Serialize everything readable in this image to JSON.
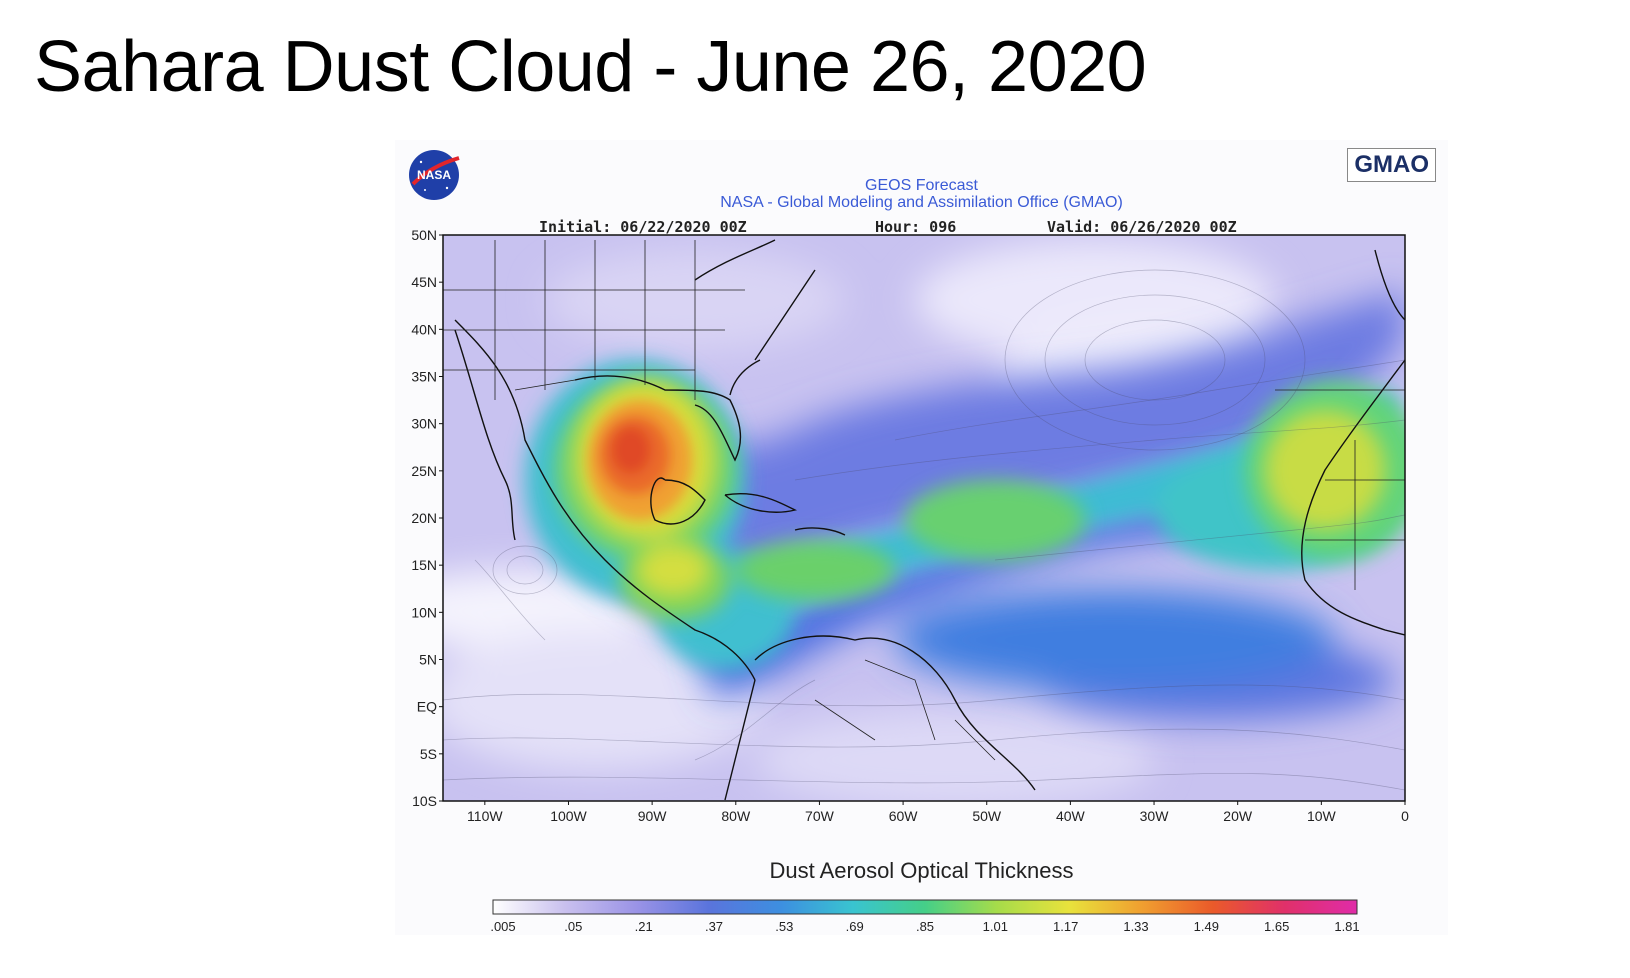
{
  "slide": {
    "title": "Sahara Dust Cloud - June 26, 2020"
  },
  "header": {
    "logo_left": "NASA",
    "logo_right": "GMAO",
    "forecast_title": "GEOS Forecast",
    "organization": "NASA - Global Modeling and Assimilation Office (GMAO)",
    "initial": "Initial: 06/22/2020 00Z",
    "hour": "Hour: 096",
    "valid": "Valid: 06/26/2020 00Z"
  },
  "map": {
    "lat_labels": [
      "50N",
      "45N",
      "40N",
      "35N",
      "30N",
      "25N",
      "20N",
      "15N",
      "10N",
      "5N",
      "EQ",
      "5S",
      "10S"
    ],
    "lon_labels": [
      "110W",
      "100W",
      "90W",
      "80W",
      "70W",
      "60W",
      "50W",
      "40W",
      "30W",
      "20W",
      "10W",
      "0"
    ],
    "extent": {
      "lon_min": -115,
      "lon_max": 0,
      "lat_min": -10,
      "lat_max": 50
    },
    "variable": "Dust Aerosol Optical Thickness",
    "icons": [
      "nasa-logo-icon",
      "gmao-badge"
    ]
  },
  "colorbar": {
    "ticks": [
      ".005",
      ".05",
      ".21",
      ".37",
      ".53",
      ".69",
      ".85",
      "1.01",
      "1.17",
      "1.33",
      "1.49",
      "1.65",
      "1.81"
    ],
    "colors": [
      "#ffffff",
      "#c9c0ee",
      "#9a93e6",
      "#5a74dc",
      "#3d8fe0",
      "#39c4d0",
      "#45cf88",
      "#a6dc4a",
      "#e8e23c",
      "#f0a030",
      "#ea5a2a",
      "#e0306a",
      "#e02ca8"
    ]
  }
}
